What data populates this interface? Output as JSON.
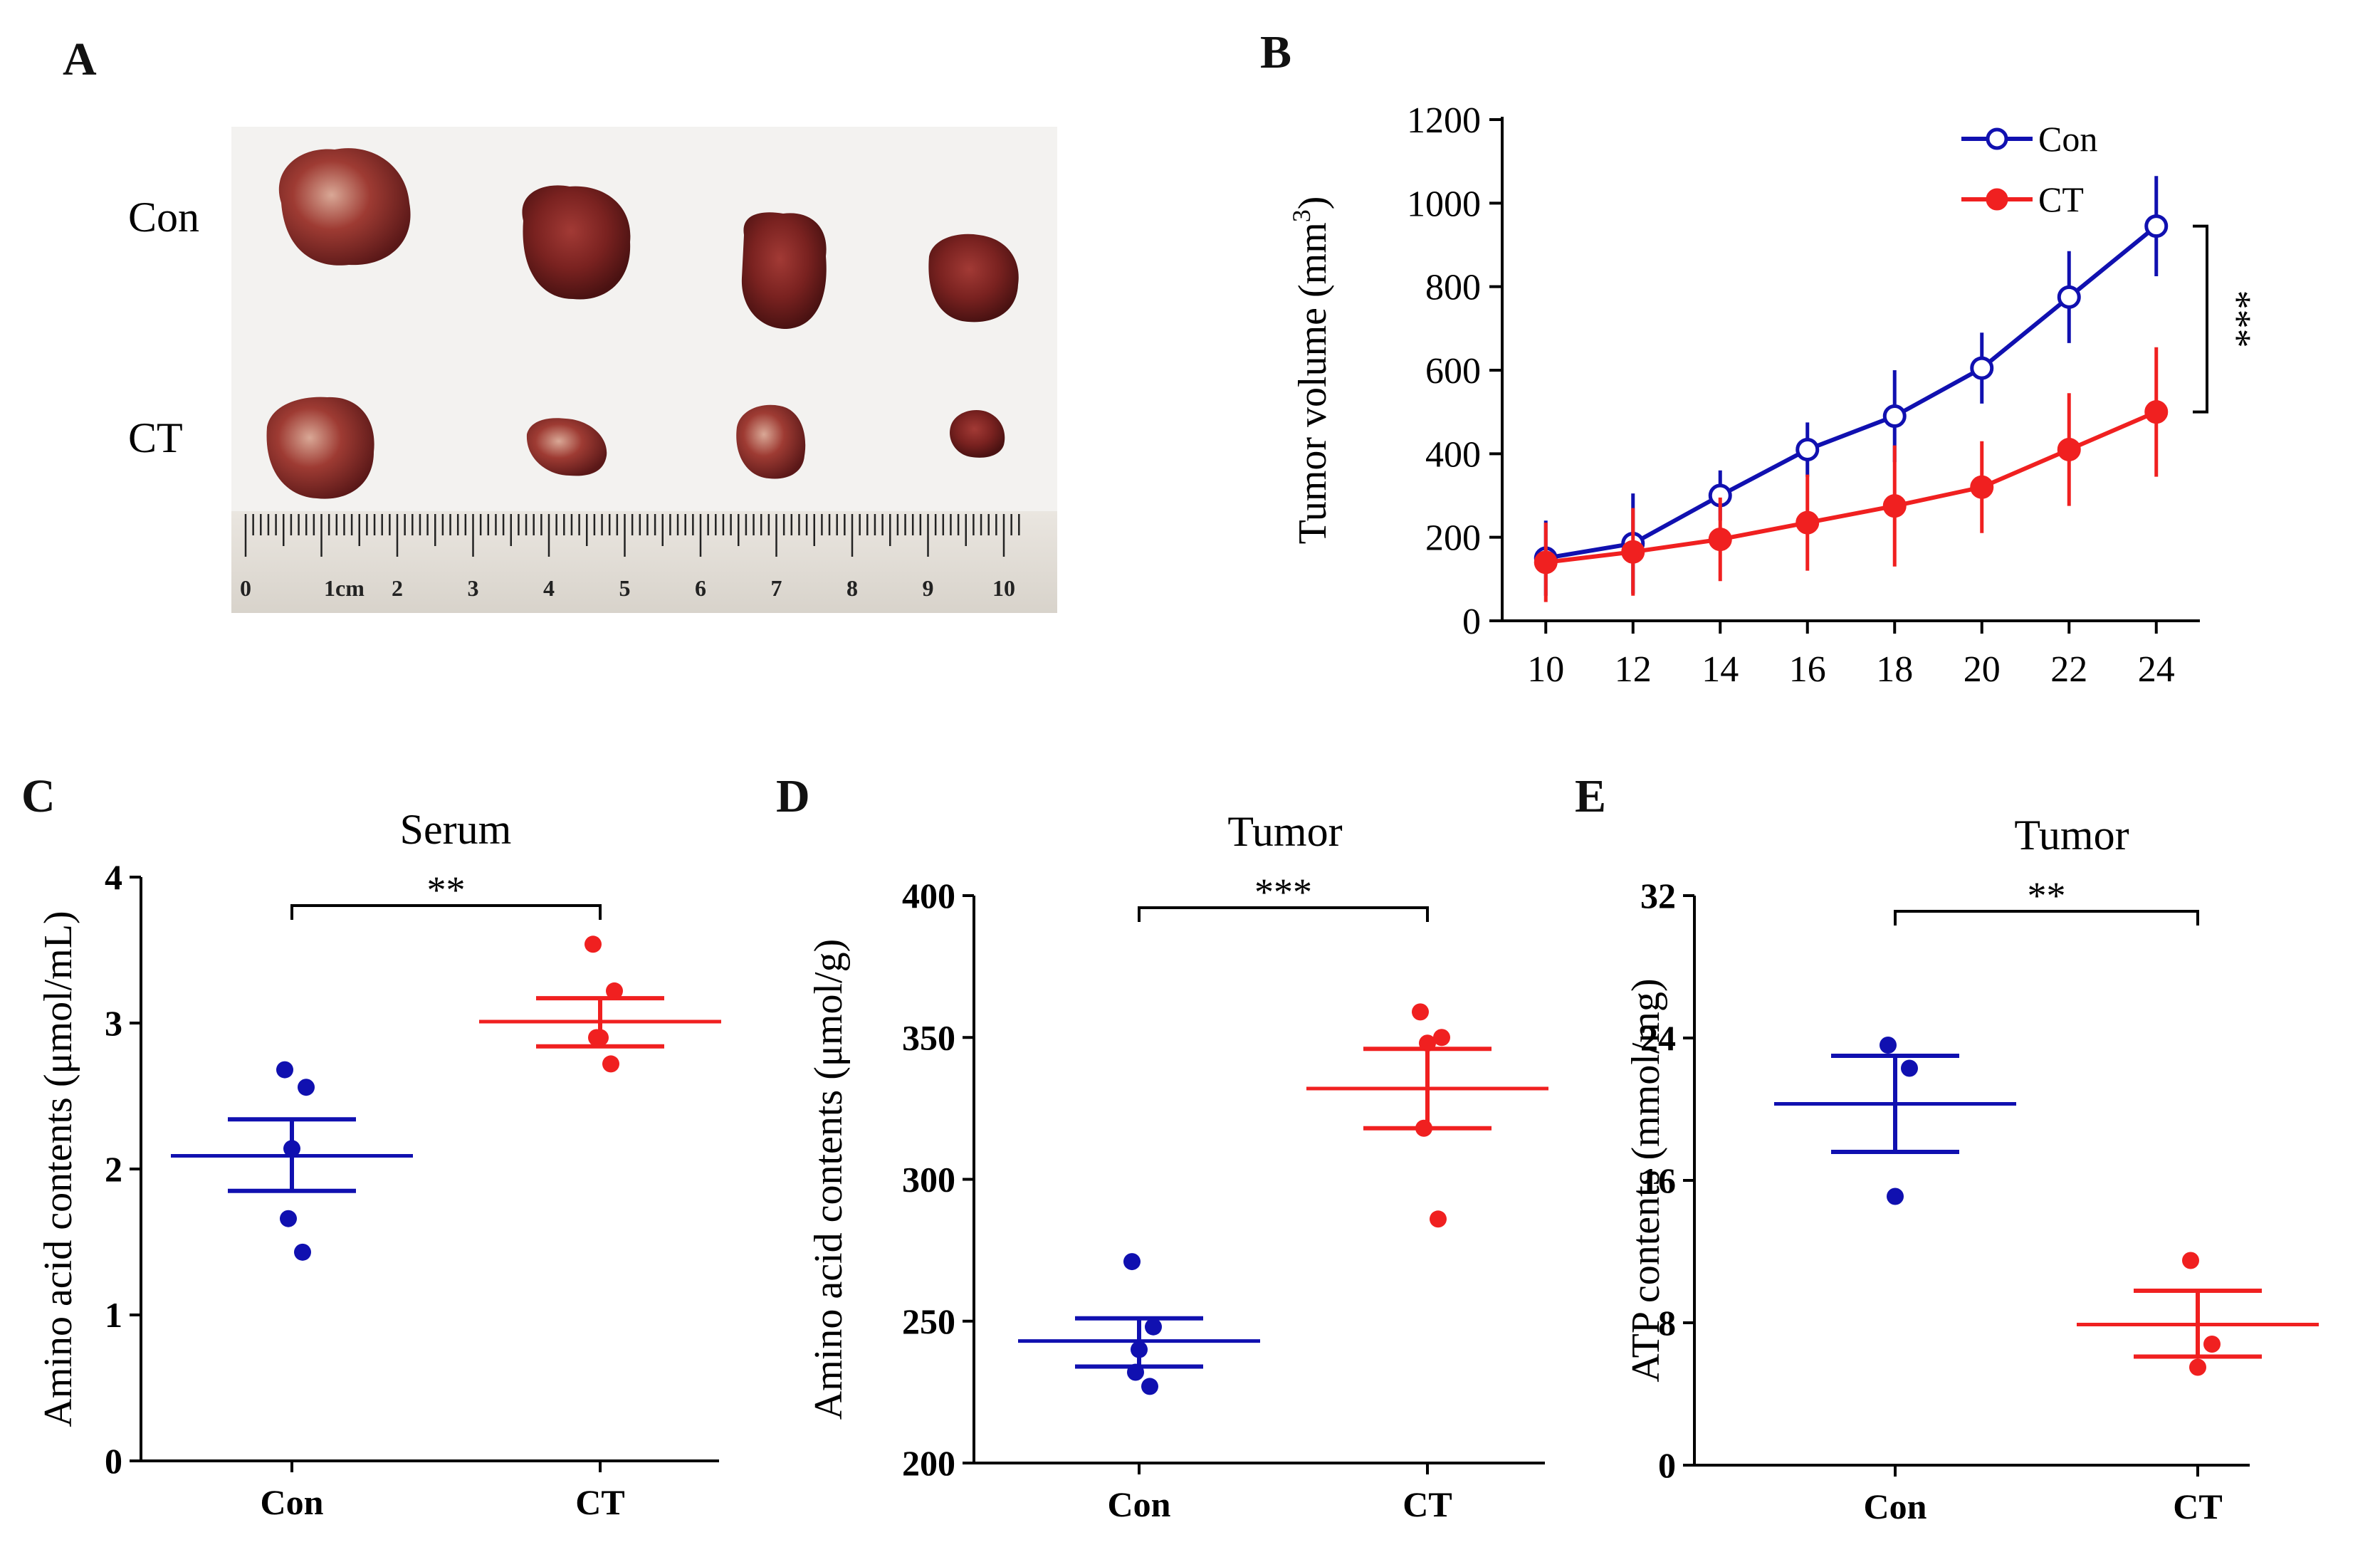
{
  "panels": {
    "A": {
      "letter": "A",
      "row_labels": [
        "Con",
        "CT"
      ],
      "ruler_labels": [
        "0",
        "1cm",
        "2",
        "3",
        "4",
        "5",
        "6",
        "7",
        "8",
        "9",
        "10"
      ]
    },
    "B": {
      "letter": "B"
    },
    "C": {
      "letter": "C"
    },
    "D": {
      "letter": "D"
    },
    "E": {
      "letter": "E"
    }
  },
  "colors": {
    "con": "#1010B0",
    "ct": "#F02020",
    "axis": "#000000"
  },
  "chart_data": [
    {
      "id": "B",
      "type": "line",
      "title": "",
      "xlabel": "",
      "ylabel": "Tumor  volume (mm",
      "ylabel_sup": "3",
      "ylabel_close": ")",
      "x": [
        10,
        12,
        14,
        16,
        18,
        20,
        22,
        24
      ],
      "xlim": [
        9,
        25
      ],
      "ylim": [
        0,
        1200
      ],
      "yticks": [
        0,
        200,
        400,
        600,
        800,
        1000,
        1200
      ],
      "series": [
        {
          "name": "Con",
          "marker": "open-circle",
          "values": [
            150,
            185,
            300,
            410,
            490,
            605,
            775,
            945
          ],
          "errors": [
            90,
            120,
            60,
            65,
            110,
            85,
            110,
            120
          ]
        },
        {
          "name": "CT",
          "marker": "filled-circle",
          "values": [
            140,
            165,
            195,
            235,
            275,
            320,
            410,
            500
          ],
          "errors": [
            95,
            105,
            100,
            115,
            145,
            110,
            135,
            155
          ]
        }
      ],
      "legend": [
        "Con",
        "CT"
      ],
      "legend_position": "top-right",
      "significance": "***"
    },
    {
      "id": "C",
      "type": "scatter",
      "title": "Serum",
      "ylabel": "Amino acid contents (μmol/mL)",
      "categories": [
        "Con",
        "CT"
      ],
      "ylim": [
        0,
        4
      ],
      "yticks": [
        0,
        1,
        2,
        3,
        4
      ],
      "groups": [
        {
          "name": "Con",
          "points": [
            2.68,
            2.56,
            2.14,
            1.66,
            1.43
          ],
          "mean": 2.09,
          "sem_low": 1.85,
          "sem_high": 2.34
        },
        {
          "name": "CT",
          "points": [
            3.54,
            3.22,
            2.9,
            2.9,
            2.72
          ],
          "mean": 3.01,
          "sem_low": 2.84,
          "sem_high": 3.17
        }
      ],
      "significance": "**"
    },
    {
      "id": "D",
      "type": "scatter",
      "title": "Tumor",
      "ylabel": "Amino acid contents (μmol/g)",
      "categories": [
        "Con",
        "CT"
      ],
      "ylim": [
        200,
        400
      ],
      "yticks": [
        200,
        250,
        300,
        350,
        400
      ],
      "groups": [
        {
          "name": "Con",
          "points": [
            271,
            248,
            240,
            232,
            227
          ],
          "mean": 243,
          "sem_low": 234,
          "sem_high": 251
        },
        {
          "name": "CT",
          "points": [
            359,
            350,
            348,
            318,
            286
          ],
          "mean": 332,
          "sem_low": 318,
          "sem_high": 346
        }
      ],
      "significance": "***"
    },
    {
      "id": "E",
      "type": "scatter",
      "title": "Tumor",
      "ylabel": "ATP contents (mmol/mg)",
      "categories": [
        "Con",
        "CT"
      ],
      "ylim": [
        0,
        32
      ],
      "yticks": [
        0,
        8,
        16,
        24,
        32
      ],
      "groups": [
        {
          "name": "Con",
          "points": [
            23.6,
            22.3,
            15.1
          ],
          "mean": 20.3,
          "sem_low": 17.6,
          "sem_high": 23.0
        },
        {
          "name": "CT",
          "points": [
            11.5,
            6.8,
            5.5
          ],
          "mean": 7.9,
          "sem_low": 6.1,
          "sem_high": 9.8
        }
      ],
      "significance": "**"
    }
  ]
}
